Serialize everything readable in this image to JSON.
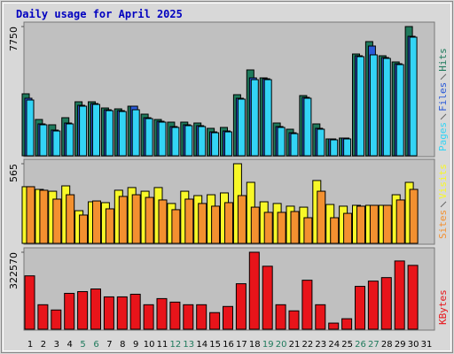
{
  "title": "Daily usage for April 2025",
  "chart_data": [
    {
      "type": "bar",
      "series": [
        {
          "name": "Hits",
          "color": "#1f7a5c",
          "values": [
            3716,
            2176,
            1858,
            2283,
            3238,
            3238,
            2866,
            2813,
            2973,
            2495,
            2176,
            2017,
            2017,
            1964,
            1646,
            1699,
            3663,
            5149,
            4671,
            1964,
            1592,
            3610,
            1911,
            1009,
            1062,
            6104,
            6848,
            5998,
            5627,
            7750,
            null
          ]
        },
        {
          "name": "Files",
          "color": "#2a5ad8",
          "values": [
            3450,
            1911,
            1540,
            1964,
            3026,
            3132,
            2760,
            2707,
            2973,
            2282,
            2070,
            1752,
            1858,
            1805,
            1433,
            1486,
            3450,
            4671,
            4618,
            1752,
            1380,
            3503,
            1646,
            1009,
            1062,
            5998,
            6582,
            5892,
            5521,
            7166,
            null
          ]
        },
        {
          "name": "Pages",
          "color": "#33d4f5",
          "values": [
            3344,
            1858,
            1486,
            1911,
            2973,
            3079,
            2707,
            2654,
            2760,
            2229,
            2017,
            1699,
            1805,
            1752,
            1380,
            1433,
            3397,
            4565,
            4565,
            1699,
            1327,
            3450,
            1592,
            955,
            1009,
            5945,
            6052,
            5839,
            5468,
            7113,
            null
          ]
        }
      ],
      "ylim": [
        0,
        7750
      ],
      "yticks": [
        7750
      ]
    },
    {
      "type": "bar",
      "series": [
        {
          "name": "Visits",
          "color": "#f8f828",
          "values": [
            402,
            383,
            370,
            408,
            232,
            295,
            289,
            377,
            396,
            370,
            396,
            283,
            370,
            339,
            345,
            358,
            565,
            433,
            295,
            283,
            264,
            257,
            446,
            276,
            264,
            270,
            270,
            270,
            345,
            433,
            null
          ]
        },
        {
          "name": "Sites",
          "color": "#f39030",
          "values": [
            402,
            377,
            314,
            345,
            201,
            301,
            245,
            333,
            345,
            326,
            308,
            239,
            314,
            283,
            264,
            289,
            339,
            257,
            220,
            220,
            226,
            182,
            370,
            182,
            213,
            264,
            270,
            270,
            308,
            383,
            null
          ]
        }
      ],
      "ylim": [
        0,
        565
      ],
      "yticks": [
        565
      ]
    },
    {
      "type": "bar",
      "categories": [
        "1",
        "2",
        "3",
        "4",
        "5",
        "6",
        "7",
        "8",
        "9",
        "10",
        "11",
        "12",
        "13",
        "14",
        "15",
        "16",
        "17",
        "18",
        "19",
        "20",
        "21",
        "22",
        "23",
        "24",
        "25",
        "26",
        "27",
        "28",
        "29",
        "30",
        "31"
      ],
      "category_colors": [
        "#000",
        "#000",
        "#000",
        "#000",
        "#1f7a5c",
        "#1f7a5c",
        "#000",
        "#000",
        "#000",
        "#000",
        "#000",
        "#1f7a5c",
        "#1f7a5c",
        "#000",
        "#000",
        "#000",
        "#000",
        "#000",
        "#1f7a5c",
        "#1f7a5c",
        "#000",
        "#000",
        "#000",
        "#000",
        "#000",
        "#1f7a5c",
        "#1f7a5c",
        "#000",
        "#000",
        "#000",
        "#000"
      ],
      "series": [
        {
          "name": "KBytes",
          "color": "#e8141a",
          "values": [
            223600,
            102600,
            80600,
            150300,
            157600,
            168600,
            135600,
            135600,
            146600,
            102600,
            128300,
            113600,
            102600,
            102600,
            69600,
            95300,
            190600,
            322570,
            263900,
            102600,
            77000,
            205300,
            102600,
            25700,
            44000,
            179600,
            201600,
            216300,
            285900,
            267600,
            null
          ]
        }
      ],
      "ylim": [
        0,
        322570
      ],
      "yticks": [
        322570
      ]
    }
  ]
}
